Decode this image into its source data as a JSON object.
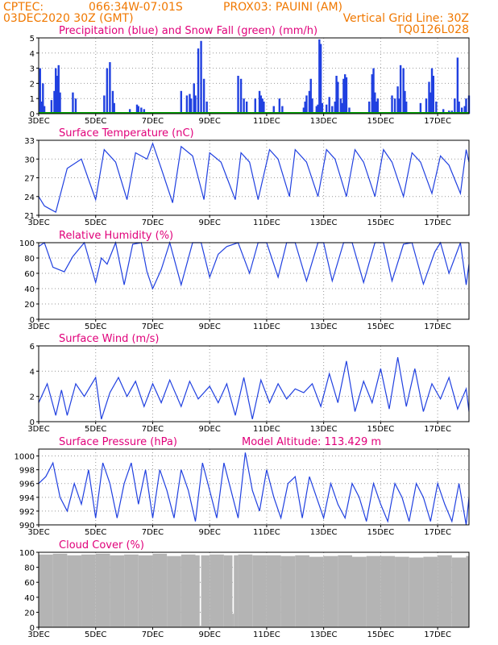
{
  "header": {
    "line1_left": "CPTEC:",
    "coords": "066:34W-07:01S",
    "station": "PROX03: PAUINI (AM)",
    "line2_left": "03DEC2020 30Z (GMT)",
    "grid_note": "Vertical Grid Line: 30Z",
    "code": "TQ0126L028"
  },
  "colors": {
    "header": "#f07800",
    "title": "#e0007a",
    "series": "#2040e0",
    "snow": "#00a000",
    "cloud": "#b4b4b4"
  },
  "x_axis": {
    "ticks": [
      3,
      5,
      7,
      9,
      11,
      13,
      15,
      17
    ],
    "labels": [
      "3DEC",
      "5DEC",
      "7DEC",
      "9DEC",
      "11DEC",
      "13DEC",
      "15DEC",
      "17DEC"
    ],
    "range": [
      3,
      18.1
    ]
  },
  "chart_data": [
    {
      "type": "bar",
      "title": "Precipitation (blue) and Snow Fall (green) (mm/h)",
      "ylim": [
        0,
        5
      ],
      "yticks": [
        0,
        1,
        2,
        3,
        4,
        5
      ],
      "series": [
        {
          "name": "Precipitation",
          "values": [
            [
              3.05,
              3.0
            ],
            [
              3.1,
              0.8
            ],
            [
              3.15,
              2.0
            ],
            [
              3.2,
              0.5
            ],
            [
              3.45,
              0.9
            ],
            [
              3.55,
              1.5
            ],
            [
              3.6,
              3.0
            ],
            [
              3.65,
              2.5
            ],
            [
              3.7,
              3.2
            ],
            [
              3.75,
              1.4
            ],
            [
              4.2,
              1.4
            ],
            [
              4.3,
              1.0
            ],
            [
              5.3,
              1.2
            ],
            [
              5.4,
              3.0
            ],
            [
              5.5,
              3.4
            ],
            [
              5.6,
              1.5
            ],
            [
              5.65,
              0.7
            ],
            [
              6.2,
              0.3
            ],
            [
              6.45,
              0.6
            ],
            [
              6.5,
              0.5
            ],
            [
              6.6,
              0.4
            ],
            [
              6.7,
              0.3
            ],
            [
              8.0,
              1.5
            ],
            [
              8.2,
              1.2
            ],
            [
              8.3,
              1.3
            ],
            [
              8.35,
              1.0
            ],
            [
              8.45,
              2.0
            ],
            [
              8.5,
              1.2
            ],
            [
              8.6,
              4.3
            ],
            [
              8.7,
              4.8
            ],
            [
              8.8,
              2.3
            ],
            [
              8.9,
              0.8
            ],
            [
              10.0,
              2.5
            ],
            [
              10.1,
              2.3
            ],
            [
              10.2,
              1.0
            ],
            [
              10.3,
              0.8
            ],
            [
              10.6,
              1.0
            ],
            [
              10.75,
              1.5
            ],
            [
              10.8,
              1.2
            ],
            [
              10.85,
              1.0
            ],
            [
              10.9,
              0.8
            ],
            [
              11.25,
              0.5
            ],
            [
              11.45,
              1.0
            ],
            [
              11.55,
              0.5
            ],
            [
              12.3,
              0.4
            ],
            [
              12.35,
              0.8
            ],
            [
              12.4,
              1.2
            ],
            [
              12.5,
              1.5
            ],
            [
              12.55,
              2.3
            ],
            [
              12.6,
              1.0
            ],
            [
              12.75,
              0.5
            ],
            [
              12.8,
              0.6
            ],
            [
              12.85,
              4.9
            ],
            [
              12.9,
              4.6
            ],
            [
              12.95,
              0.7
            ],
            [
              13.1,
              0.6
            ],
            [
              13.2,
              1.1
            ],
            [
              13.3,
              0.5
            ],
            [
              13.4,
              0.8
            ],
            [
              13.45,
              2.5
            ],
            [
              13.5,
              2.1
            ],
            [
              13.6,
              1.0
            ],
            [
              13.65,
              0.7
            ],
            [
              13.7,
              2.3
            ],
            [
              13.75,
              2.6
            ],
            [
              13.8,
              2.4
            ],
            [
              13.9,
              0.4
            ],
            [
              14.6,
              0.8
            ],
            [
              14.7,
              2.6
            ],
            [
              14.75,
              3.0
            ],
            [
              14.8,
              1.4
            ],
            [
              14.85,
              0.8
            ],
            [
              14.9,
              1.0
            ],
            [
              15.4,
              1.2
            ],
            [
              15.5,
              1.0
            ],
            [
              15.6,
              1.8
            ],
            [
              15.65,
              1.0
            ],
            [
              15.7,
              3.2
            ],
            [
              15.8,
              3.0
            ],
            [
              15.85,
              1.5
            ],
            [
              15.9,
              0.8
            ],
            [
              16.4,
              0.7
            ],
            [
              16.6,
              1.0
            ],
            [
              16.7,
              2.1
            ],
            [
              16.75,
              1.4
            ],
            [
              16.8,
              3.0
            ],
            [
              16.85,
              2.5
            ],
            [
              16.95,
              0.8
            ],
            [
              17.2,
              0.3
            ],
            [
              17.4,
              0.2
            ],
            [
              17.5,
              0.2
            ],
            [
              17.6,
              1.0
            ],
            [
              17.7,
              3.7
            ],
            [
              17.75,
              0.8
            ],
            [
              17.85,
              0.4
            ],
            [
              17.95,
              0.5
            ],
            [
              18.0,
              1.0
            ],
            [
              18.1,
              1.2
            ]
          ]
        },
        {
          "name": "Snow Fall",
          "values": []
        }
      ]
    },
    {
      "type": "line",
      "title": "Surface Temperature (nC)",
      "ylim": [
        21,
        33
      ],
      "yticks": [
        21,
        24,
        27,
        30,
        33
      ],
      "x": [
        3.0,
        3.2,
        3.4,
        3.6,
        4.0,
        4.5,
        5.0,
        5.3,
        5.7,
        6.1,
        6.4,
        6.8,
        7.0,
        7.3,
        7.7,
        8.0,
        8.4,
        8.8,
        9.0,
        9.4,
        9.9,
        10.1,
        10.4,
        10.7,
        11.1,
        11.4,
        11.8,
        12.0,
        12.4,
        12.8,
        13.1,
        13.4,
        13.8,
        14.1,
        14.4,
        14.8,
        15.1,
        15.4,
        15.8,
        16.1,
        16.4,
        16.8,
        17.1,
        17.4,
        17.8,
        18.0,
        18.1
      ],
      "values": [
        24,
        22.5,
        22,
        21.5,
        28.5,
        30,
        23.5,
        31.5,
        29.5,
        23.5,
        31,
        30,
        32.5,
        28.5,
        23,
        32,
        30.5,
        23.5,
        31,
        29.5,
        23.5,
        31,
        29.5,
        23.5,
        31.5,
        30,
        24,
        31.5,
        29.5,
        24,
        31.5,
        30,
        24,
        31.5,
        29.5,
        24,
        31.5,
        29.5,
        24,
        31,
        29.5,
        24.5,
        30.5,
        29,
        24.5,
        31.5,
        29.5
      ]
    },
    {
      "type": "line",
      "title": "Relative Humidity (%)",
      "ylim": [
        0,
        100
      ],
      "yticks": [
        0,
        20,
        40,
        60,
        80,
        100
      ],
      "x": [
        3.0,
        3.2,
        3.5,
        3.9,
        4.2,
        4.6,
        5.0,
        5.2,
        5.4,
        5.7,
        6.0,
        6.3,
        6.6,
        6.8,
        7.0,
        7.3,
        7.6,
        8.0,
        8.4,
        8.7,
        9.0,
        9.3,
        9.6,
        10.0,
        10.4,
        10.7,
        11.0,
        11.4,
        11.7,
        12.0,
        12.4,
        12.8,
        13.0,
        13.3,
        13.7,
        14.0,
        14.4,
        14.8,
        15.1,
        15.4,
        15.8,
        16.1,
        16.5,
        16.9,
        17.1,
        17.4,
        17.8,
        18.0,
        18.1
      ],
      "values": [
        95,
        100,
        68,
        62,
        82,
        100,
        48,
        80,
        72,
        100,
        45,
        98,
        100,
        62,
        40,
        65,
        100,
        45,
        100,
        100,
        55,
        85,
        95,
        100,
        60,
        100,
        100,
        55,
        100,
        100,
        50,
        100,
        100,
        50,
        100,
        100,
        48,
        100,
        100,
        50,
        98,
        100,
        46,
        88,
        100,
        60,
        100,
        45,
        72
      ]
    },
    {
      "type": "line",
      "title": "Surface Wind (m/s)",
      "ylim": [
        0,
        6
      ],
      "yticks": [
        0,
        2,
        4,
        6
      ],
      "x": [
        3.0,
        3.3,
        3.6,
        3.8,
        4.0,
        4.3,
        4.6,
        5.0,
        5.2,
        5.5,
        5.8,
        6.1,
        6.4,
        6.7,
        7.0,
        7.3,
        7.6,
        8.0,
        8.3,
        8.6,
        9.0,
        9.3,
        9.6,
        9.9,
        10.2,
        10.5,
        10.8,
        11.1,
        11.4,
        11.7,
        12.0,
        12.3,
        12.6,
        12.9,
        13.2,
        13.5,
        13.8,
        14.1,
        14.4,
        14.7,
        15.0,
        15.3,
        15.6,
        15.9,
        16.2,
        16.5,
        16.8,
        17.1,
        17.4,
        17.7,
        18.0,
        18.1
      ],
      "values": [
        1.5,
        3.0,
        0.5,
        2.5,
        0.5,
        3.0,
        2.0,
        3.5,
        0.2,
        2.3,
        3.5,
        2.0,
        3.2,
        1.2,
        3.0,
        1.5,
        3.3,
        1.2,
        3.2,
        1.8,
        2.8,
        1.5,
        3.0,
        0.5,
        3.5,
        0.2,
        3.3,
        1.5,
        3.0,
        1.8,
        2.6,
        2.3,
        3.0,
        1.2,
        3.8,
        1.5,
        4.8,
        0.8,
        3.2,
        1.5,
        4.2,
        1.0,
        5.1,
        1.2,
        4.2,
        0.8,
        3.0,
        1.8,
        3.5,
        1.0,
        2.6,
        0.8
      ]
    },
    {
      "type": "line",
      "title": "Surface Pressure (hPa)",
      "annotation": "Model Altitude: 113.429 m",
      "ylim": [
        990,
        1001
      ],
      "yticks": [
        990,
        992,
        994,
        996,
        998,
        1000
      ],
      "x": [
        3.0,
        3.25,
        3.5,
        3.75,
        4.0,
        4.25,
        4.5,
        4.75,
        5.0,
        5.25,
        5.5,
        5.75,
        6.0,
        6.25,
        6.5,
        6.75,
        7.0,
        7.25,
        7.5,
        7.75,
        8.0,
        8.25,
        8.5,
        8.75,
        9.0,
        9.25,
        9.5,
        9.75,
        10.0,
        10.25,
        10.5,
        10.75,
        11.0,
        11.25,
        11.5,
        11.75,
        12.0,
        12.25,
        12.5,
        12.75,
        13.0,
        13.25,
        13.5,
        13.75,
        14.0,
        14.25,
        14.5,
        14.75,
        15.0,
        15.25,
        15.5,
        15.75,
        16.0,
        16.25,
        16.5,
        16.75,
        17.0,
        17.25,
        17.5,
        17.75,
        18.0,
        18.1
      ],
      "values": [
        996,
        997,
        999,
        994,
        992,
        996,
        993,
        998,
        991,
        999,
        996,
        991,
        996,
        999,
        993,
        998,
        991,
        998,
        995,
        991,
        998,
        995,
        990.5,
        999,
        995,
        991,
        999,
        995,
        991,
        1000.5,
        995,
        992,
        998,
        994,
        991,
        996,
        997,
        991,
        997,
        994,
        991,
        996,
        993,
        991,
        996,
        994,
        990.5,
        996,
        993,
        990.5,
        996,
        994,
        990.5,
        996,
        994,
        990.5,
        996,
        993,
        990.5,
        996,
        990,
        994
      ]
    },
    {
      "type": "bar",
      "title": "Cloud Cover (%)",
      "ylim": [
        0,
        100
      ],
      "yticks": [
        0,
        20,
        40,
        60,
        80,
        100
      ],
      "values_summary": [
        [
          3.0,
          97
        ],
        [
          3.5,
          98
        ],
        [
          4.0,
          96
        ],
        [
          4.5,
          97
        ],
        [
          5.0,
          98
        ],
        [
          5.5,
          96
        ],
        [
          6.0,
          97
        ],
        [
          6.5,
          96
        ],
        [
          7.0,
          98
        ],
        [
          7.5,
          95
        ],
        [
          8.0,
          97
        ],
        [
          8.5,
          96
        ],
        [
          8.65,
          2
        ],
        [
          8.7,
          96
        ],
        [
          9.0,
          97
        ],
        [
          9.5,
          96
        ],
        [
          9.8,
          18
        ],
        [
          9.85,
          96
        ],
        [
          10.0,
          97
        ],
        [
          10.5,
          96
        ],
        [
          11.0,
          96
        ],
        [
          11.5,
          95
        ],
        [
          12.0,
          96
        ],
        [
          12.5,
          94
        ],
        [
          13.0,
          95
        ],
        [
          13.5,
          96
        ],
        [
          14.0,
          94
        ],
        [
          14.5,
          95
        ],
        [
          15.0,
          95
        ],
        [
          15.5,
          94
        ],
        [
          16.0,
          93
        ],
        [
          16.5,
          94
        ],
        [
          17.0,
          96
        ],
        [
          17.5,
          93
        ],
        [
          18.0,
          95
        ]
      ]
    }
  ]
}
